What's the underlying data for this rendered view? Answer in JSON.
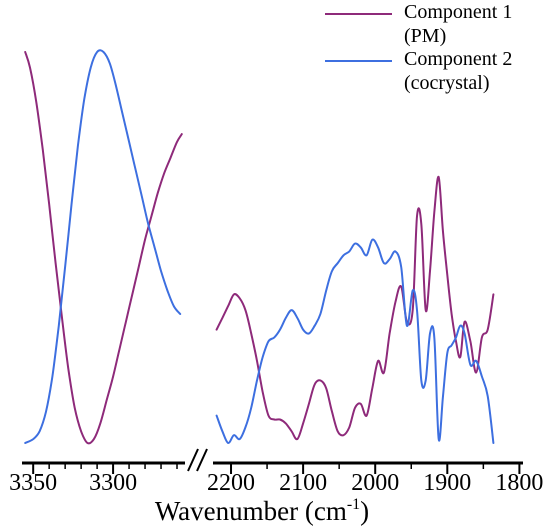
{
  "chart_data": {
    "type": "line",
    "xlabel": "Wavenumber (cm",
    "xlabel_sup": "-1",
    "xlabel_tail": ")",
    "x_axis_reversed": true,
    "x_axis_broken": true,
    "panels": [
      {
        "xlim": [
          3357,
          3255
        ],
        "ticks": [
          3350,
          3300
        ],
        "minor_ticks": [
          3340,
          3330,
          3320,
          3310,
          3290,
          3280,
          3270,
          3260
        ]
      },
      {
        "xlim": [
          2225,
          1795
        ],
        "ticks": [
          2200,
          2100,
          2000,
          1900,
          1800
        ],
        "minor_ticks": [
          2150,
          2050,
          1950,
          1850
        ]
      }
    ],
    "ylim": [
      0,
      100
    ],
    "legend": {
      "placement": "top-right",
      "entries": [
        {
          "lines": [
            "Component 1",
            "(PM)"
          ],
          "color": "#8e2a7a"
        },
        {
          "lines": [
            "Component 2",
            "(cocrystal)"
          ],
          "color": "#3d6fe0"
        }
      ]
    },
    "series": [
      {
        "name": "Component 1 (PM)",
        "color": "#8e2a7a",
        "segments": [
          {
            "x": [
              3355,
              3352,
              3348,
              3344,
              3340,
              3336,
              3332,
              3328,
              3324,
              3320,
              3316,
              3312,
              3308,
              3304,
              3300,
              3296,
              3292,
              3288,
              3284,
              3280,
              3276,
              3272,
              3268,
              3264,
              3260,
              3257
            ],
            "y": [
              100,
              96,
              87,
              75,
              61,
              46,
              32,
              19,
              9,
              3,
              0,
              1,
              5,
              11,
              17,
              24,
              31,
              38,
              45,
              52,
              58,
              64,
              69,
              73,
              77,
              79
            ]
          },
          {
            "x": [
              2220,
              2212,
              2204,
              2196,
              2188,
              2180,
              2172,
              2164,
              2156,
              2148,
              2140,
              2132,
              2124,
              2116,
              2108,
              2100,
              2092,
              2084,
              2076,
              2068,
              2060,
              2052,
              2044,
              2036,
              2028,
              2020,
              2012,
              2004,
              1996,
              1988,
              1980,
              1972,
              1964,
              1956,
              1948,
              1942,
              1936,
              1930,
              1924,
              1918,
              1912,
              1906,
              1900,
              1894,
              1888,
              1882,
              1876,
              1868,
              1860,
              1852,
              1844,
              1836
            ],
            "y": [
              29,
              32,
              35,
              38,
              37,
              34,
              28,
              21,
              13,
              7,
              6,
              6,
              5,
              3,
              1,
              5,
              10,
              15,
              16,
              14,
              8,
              3,
              2,
              4,
              9,
              10,
              7,
              14,
              21,
              18,
              28,
              36,
              40,
              31,
              34,
              58,
              56,
              34,
              44,
              59,
              68,
              54,
              43,
              33,
              26,
              22,
              31,
              26,
              18,
              27,
              29,
              38
            ]
          }
        ]
      },
      {
        "name": "Component 2 (cocrystal)",
        "color": "#3d6fe0",
        "segments": [
          {
            "x": [
              3355,
              3350,
              3346,
              3342,
              3338,
              3334,
              3330,
              3326,
              3322,
              3318,
              3314,
              3310,
              3306,
              3302,
              3298,
              3294,
              3290,
              3286,
              3282,
              3278,
              3274,
              3270,
              3266,
              3262,
              3258
            ],
            "y": [
              0,
              1,
              3,
              8,
              17,
              30,
              45,
              61,
              76,
              88,
              96,
              100,
              100,
              97,
              91,
              84,
              77,
              70,
              63,
              56,
              50,
              44,
              39,
              35,
              33
            ]
          },
          {
            "x": [
              2220,
              2212,
              2204,
              2196,
              2188,
              2180,
              2172,
              2164,
              2156,
              2148,
              2140,
              2132,
              2124,
              2116,
              2108,
              2100,
              2092,
              2084,
              2076,
              2068,
              2060,
              2052,
              2044,
              2036,
              2028,
              2020,
              2012,
              2004,
              1996,
              1988,
              1980,
              1972,
              1964,
              1956,
              1948,
              1942,
              1936,
              1930,
              1924,
              1918,
              1912,
              1906,
              1900,
              1894,
              1888,
              1882,
              1876,
              1868,
              1860,
              1852,
              1844,
              1836
            ],
            "y": [
              7,
              3,
              0,
              2,
              1,
              4,
              9,
              16,
              22,
              26,
              27,
              29,
              32,
              34,
              32,
              29,
              28,
              30,
              33,
              39,
              44,
              46,
              48,
              49,
              51,
              50,
              48,
              52,
              50,
              46,
              47,
              49,
              45,
              30,
              39,
              34,
              16,
              16,
              28,
              27,
              1,
              12,
              23,
              25,
              27,
              30,
              28,
              20,
              21,
              17,
              12,
              0
            ]
          }
        ]
      }
    ]
  }
}
